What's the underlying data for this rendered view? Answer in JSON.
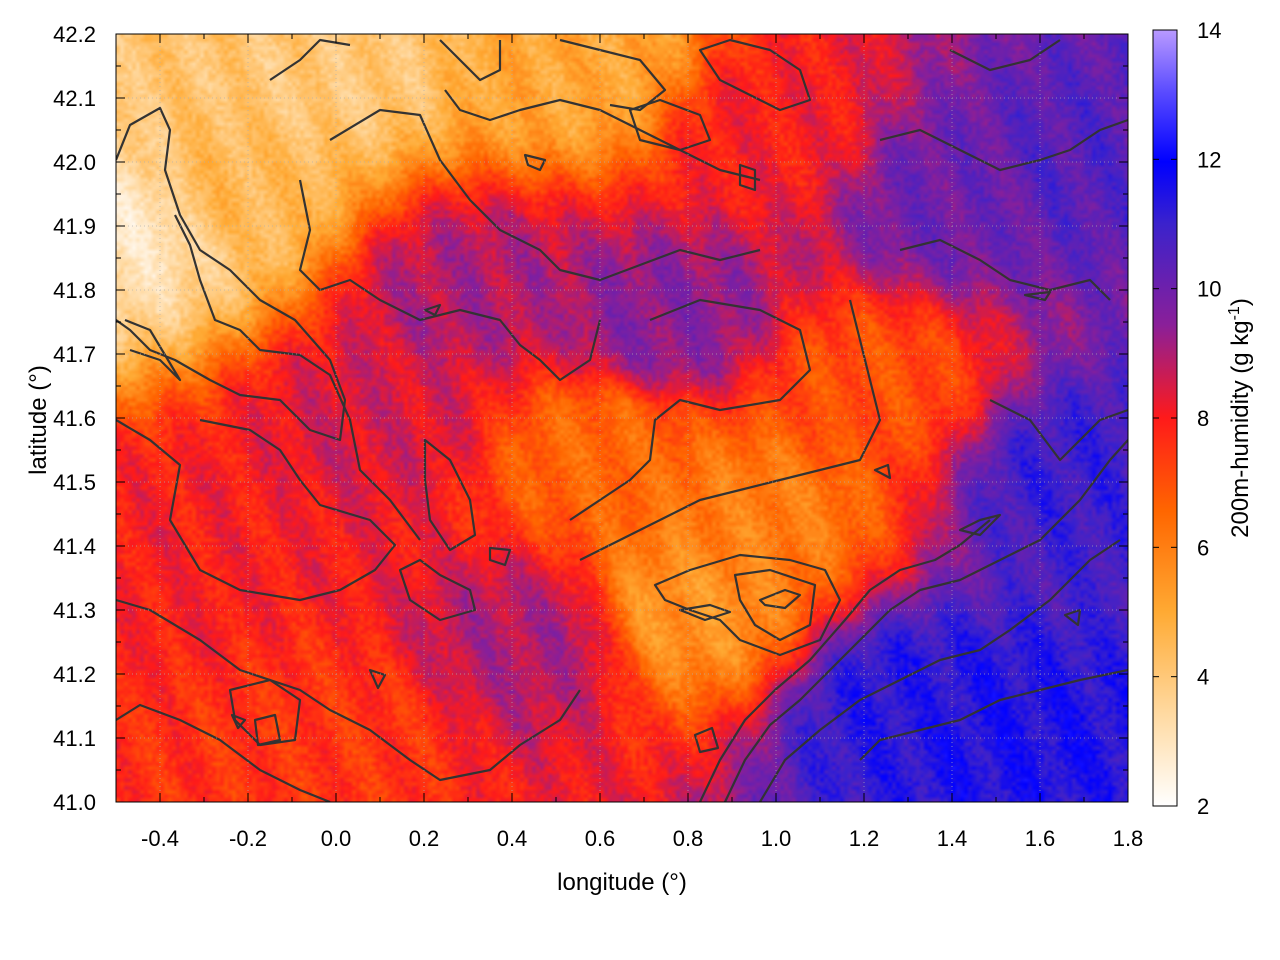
{
  "chart_data": {
    "type": "heatmap",
    "title": "",
    "xlabel": "longitude (°)",
    "ylabel": "latitude (°)",
    "colorbar_label": "200m-humidity (g kg",
    "colorbar_label_exp": "-1",
    "colorbar_label_close": ")",
    "xlim": [
      -0.5,
      1.8
    ],
    "ylim": [
      41.0,
      42.2
    ],
    "x_ticks": [
      -0.4,
      -0.2,
      0.0,
      0.2,
      0.4,
      0.6,
      0.8,
      1.0,
      1.2,
      1.4,
      1.6,
      1.8
    ],
    "x_tick_labels": [
      "-0.4",
      "-0.2",
      "0.0",
      "0.2",
      "0.4",
      "0.6",
      "0.8",
      "1.0",
      "1.2",
      "1.4",
      "1.6",
      "1.8"
    ],
    "y_ticks": [
      41.0,
      41.1,
      41.2,
      41.3,
      41.4,
      41.5,
      41.6,
      41.7,
      41.8,
      41.9,
      42.0,
      42.1,
      42.2
    ],
    "y_tick_labels": [
      "41.0",
      "41.1",
      "41.2",
      "41.3",
      "41.4",
      "41.5",
      "41.6",
      "41.7",
      "41.8",
      "41.9",
      "42.0",
      "42.1",
      "42.2"
    ],
    "clim": [
      2,
      14
    ],
    "colorbar_ticks": [
      2,
      4,
      6,
      8,
      10,
      12,
      14
    ],
    "colorbar_tick_labels": [
      "2",
      "4",
      "6",
      "8",
      "10",
      "12",
      "14"
    ],
    "grid": true,
    "colormap": [
      "#ffffff",
      "#ffcf80",
      "#ff9900",
      "#ff3300",
      "#cc1a4d",
      "#6622aa",
      "#2a1ee0",
      "#0000ff",
      "#3333ff",
      "#b088ff"
    ],
    "contour_color": "#333333",
    "field_regions": [
      {
        "lon": -0.45,
        "lat": 41.9,
        "value": 3.0
      },
      {
        "lon": -0.25,
        "lat": 41.95,
        "value": 4.5
      },
      {
        "lon": 0.0,
        "lat": 42.15,
        "value": 4.0
      },
      {
        "lon": 0.55,
        "lat": 42.15,
        "value": 5.0
      },
      {
        "lon": 0.8,
        "lat": 41.3,
        "value": 5.5
      },
      {
        "lon": 0.95,
        "lat": 41.45,
        "value": 6.0
      },
      {
        "lon": 1.2,
        "lat": 41.65,
        "value": 7.0
      },
      {
        "lon": 0.6,
        "lat": 41.55,
        "value": 6.5
      },
      {
        "lon": -0.3,
        "lat": 41.4,
        "value": 8.0
      },
      {
        "lon": 0.0,
        "lat": 41.1,
        "value": 7.5
      },
      {
        "lon": 0.3,
        "lat": 41.8,
        "value": 9.0
      },
      {
        "lon": 0.75,
        "lat": 41.75,
        "value": 9.5
      },
      {
        "lon": 1.4,
        "lat": 41.95,
        "value": 10.0
      },
      {
        "lon": 1.7,
        "lat": 42.0,
        "value": 10.5
      },
      {
        "lon": 1.5,
        "lat": 41.1,
        "value": 11.5
      },
      {
        "lon": 1.3,
        "lat": 41.15,
        "value": 11.3
      },
      {
        "lon": 1.7,
        "lat": 41.5,
        "value": 11.0
      },
      {
        "lon": 0.45,
        "lat": 41.25,
        "value": 9.0
      },
      {
        "lon": 0.1,
        "lat": 41.6,
        "value": 8.5
      },
      {
        "lon": 1.0,
        "lat": 42.05,
        "value": 8.0
      }
    ]
  }
}
